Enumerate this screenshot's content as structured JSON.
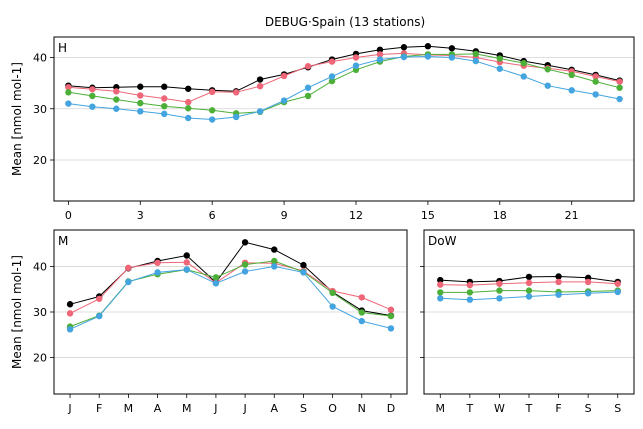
{
  "figure": {
    "title": "DEBUG·Spain (13 stations)",
    "ylabel": "Mean [nmol mol-1]"
  },
  "series_colors": [
    "#000000",
    "#ee6677",
    "#4caf38",
    "#44a4e0"
  ],
  "chart_data": [
    {
      "panel": "H",
      "type": "line",
      "x": [
        0,
        1,
        2,
        3,
        4,
        5,
        6,
        7,
        8,
        9,
        10,
        11,
        12,
        13,
        14,
        15,
        16,
        17,
        18,
        19,
        20,
        21,
        22,
        23
      ],
      "xticks": [
        0,
        3,
        6,
        9,
        12,
        15,
        18,
        21
      ],
      "xticklabels": [
        "0",
        "3",
        "6",
        "9",
        "12",
        "15",
        "18",
        "21"
      ],
      "xlim": [
        -0.6,
        23.6
      ],
      "ylim": [
        12,
        44
      ],
      "yticks": [
        20,
        30,
        40
      ],
      "ylabel": "Mean [nmol mol-1]",
      "series": [
        {
          "color": "#000000",
          "values": [
            34.5,
            34.1,
            34.2,
            34.3,
            34.3,
            33.9,
            33.6,
            33.4,
            35.7,
            36.7,
            38.1,
            39.6,
            40.7,
            41.5,
            42.0,
            42.2,
            41.8,
            41.2,
            40.4,
            39.3,
            38.5,
            37.6,
            36.6,
            35.5
          ]
        },
        {
          "color": "#ee6677",
          "values": [
            34.2,
            33.8,
            33.4,
            32.6,
            32.0,
            31.3,
            33.3,
            33.2,
            34.4,
            36.4,
            38.3,
            39.2,
            40.0,
            40.6,
            40.8,
            40.5,
            40.4,
            40.0,
            39.1,
            38.4,
            37.9,
            37.3,
            36.3,
            35.3
          ]
        },
        {
          "color": "#4caf38",
          "values": [
            33.2,
            32.5,
            31.8,
            31.1,
            30.5,
            30.1,
            29.7,
            29.1,
            29.4,
            31.3,
            32.5,
            35.4,
            37.6,
            39.2,
            40.2,
            40.6,
            40.6,
            40.7,
            39.8,
            38.9,
            37.7,
            36.6,
            35.3,
            34.1
          ]
        },
        {
          "color": "#44a4e0",
          "values": [
            31.0,
            30.4,
            30.0,
            29.5,
            29.0,
            28.2,
            27.9,
            28.4,
            29.5,
            31.6,
            34.1,
            36.3,
            38.4,
            39.6,
            40.1,
            40.2,
            40.0,
            39.3,
            37.8,
            36.3,
            34.5,
            33.6,
            32.8,
            31.9
          ]
        }
      ]
    },
    {
      "panel": "M",
      "type": "line",
      "categories": [
        "J",
        "F",
        "M",
        "A",
        "M",
        "J",
        "J",
        "A",
        "S",
        "O",
        "N",
        "D"
      ],
      "ylim": [
        12,
        48
      ],
      "yticks": [
        20,
        30,
        40
      ],
      "ylabel": "Mean [nmol mol-1]",
      "series": [
        {
          "color": "#000000",
          "values": [
            31.7,
            33.4,
            39.6,
            41.2,
            42.4,
            36.5,
            45.3,
            43.7,
            40.3,
            34.4,
            30.3,
            29.2
          ]
        },
        {
          "color": "#ee6677",
          "values": [
            29.7,
            32.9,
            39.7,
            40.8,
            40.9,
            36.4,
            40.8,
            40.7,
            39.0,
            34.6,
            33.2,
            30.5
          ]
        },
        {
          "color": "#4caf38",
          "values": [
            26.8,
            29.2,
            36.7,
            38.3,
            39.3,
            37.6,
            40.4,
            41.2,
            38.8,
            34.2,
            29.9,
            29.1
          ]
        },
        {
          "color": "#44a4e0",
          "values": [
            26.2,
            29.1,
            36.6,
            38.7,
            39.3,
            36.3,
            38.9,
            40.0,
            38.7,
            31.2,
            28.0,
            26.4
          ]
        }
      ]
    },
    {
      "panel": "DoW",
      "type": "line",
      "categories": [
        "M",
        "T",
        "W",
        "T",
        "F",
        "S",
        "S"
      ],
      "ylim": [
        12,
        48
      ],
      "yticks": [
        20,
        30,
        40
      ],
      "series": [
        {
          "color": "#000000",
          "values": [
            37.0,
            36.6,
            36.8,
            37.7,
            37.8,
            37.5,
            36.6
          ]
        },
        {
          "color": "#ee6677",
          "values": [
            36.0,
            35.9,
            36.2,
            36.4,
            36.6,
            36.6,
            36.2
          ]
        },
        {
          "color": "#4caf38",
          "values": [
            34.3,
            34.3,
            34.7,
            34.7,
            34.4,
            34.5,
            34.7
          ]
        },
        {
          "color": "#44a4e0",
          "values": [
            33.0,
            32.7,
            33.0,
            33.4,
            33.8,
            34.1,
            34.4
          ]
        }
      ]
    }
  ]
}
